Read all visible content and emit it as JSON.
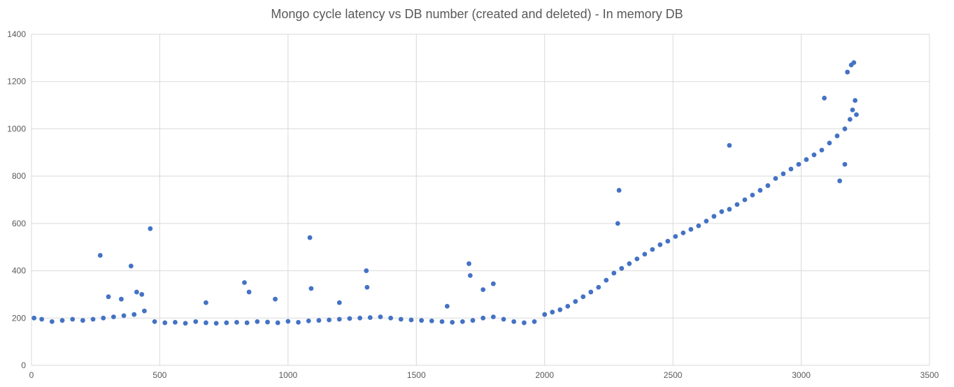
{
  "chart_data": {
    "type": "scatter",
    "title": "Mongo cycle latency vs DB number (created and deleted)  - In memory DB",
    "xlabel": "",
    "ylabel": "",
    "xlim": [
      0,
      3500
    ],
    "ylim": [
      0,
      1400
    ],
    "xticks": [
      0,
      500,
      1000,
      1500,
      2000,
      2500,
      3000,
      3500
    ],
    "yticks": [
      0,
      200,
      400,
      600,
      800,
      1000,
      1200,
      1400
    ],
    "grid": true,
    "legend": "none",
    "marker_color": "#4472C4",
    "gridline_color": "#D9D9D9",
    "series": [
      {
        "x": [
          10,
          40,
          80,
          120,
          160,
          200,
          240,
          280,
          320,
          360,
          400,
          440,
          480,
          520,
          560,
          600,
          640,
          680,
          720,
          760,
          800,
          840,
          880,
          920,
          960,
          1000,
          1040,
          1080,
          1120,
          1160,
          1200,
          1240,
          1280,
          1320,
          1360,
          1400,
          1440,
          1480,
          1520,
          1560,
          1600,
          1640,
          1680,
          1720,
          1760,
          1800,
          1840,
          1880,
          1920,
          1960,
          2000,
          2030,
          2060,
          2090,
          2120,
          2150,
          2180,
          2210,
          2240,
          2270,
          2300,
          2330,
          2360,
          2390,
          2420,
          2450,
          2480,
          2510,
          2540,
          2570,
          2600,
          2630,
          2660,
          2690,
          2720,
          2750,
          2780,
          2810,
          2840,
          2870,
          2900,
          2930,
          2960,
          2990,
          3020,
          3050,
          3080,
          3110,
          3140,
          3170,
          3190,
          3200,
          3210,
          3215,
          268,
          388,
          463,
          1085,
          1305,
          1705,
          1308,
          830,
          848,
          1090,
          1800,
          3195,
          3205,
          3180,
          2290,
          2720,
          2285,
          3090,
          3150,
          3170,
          300,
          350,
          410,
          430,
          1710,
          1760,
          950,
          680,
          1200,
          1620
        ],
        "y": [
          200,
          195,
          185,
          190,
          195,
          190,
          195,
          200,
          205,
          210,
          215,
          230,
          185,
          180,
          182,
          178,
          185,
          180,
          178,
          180,
          182,
          180,
          185,
          183,
          180,
          186,
          182,
          188,
          190,
          192,
          195,
          198,
          200,
          202,
          205,
          200,
          195,
          192,
          190,
          188,
          185,
          182,
          185,
          190,
          200,
          205,
          195,
          185,
          180,
          185,
          215,
          225,
          235,
          250,
          270,
          290,
          310,
          330,
          360,
          390,
          410,
          430,
          450,
          470,
          490,
          510,
          525,
          545,
          560,
          575,
          590,
          610,
          630,
          650,
          660,
          680,
          700,
          720,
          740,
          760,
          790,
          810,
          830,
          850,
          870,
          890,
          910,
          940,
          970,
          1000,
          1040,
          1080,
          1120,
          1060,
          465,
          420,
          578,
          540,
          400,
          430,
          330,
          350,
          310,
          325,
          345,
          1270,
          1280,
          1240,
          740,
          930,
          600,
          1130,
          780,
          850,
          290,
          280,
          310,
          300,
          380,
          320,
          280,
          265,
          265,
          250
        ]
      }
    ]
  }
}
